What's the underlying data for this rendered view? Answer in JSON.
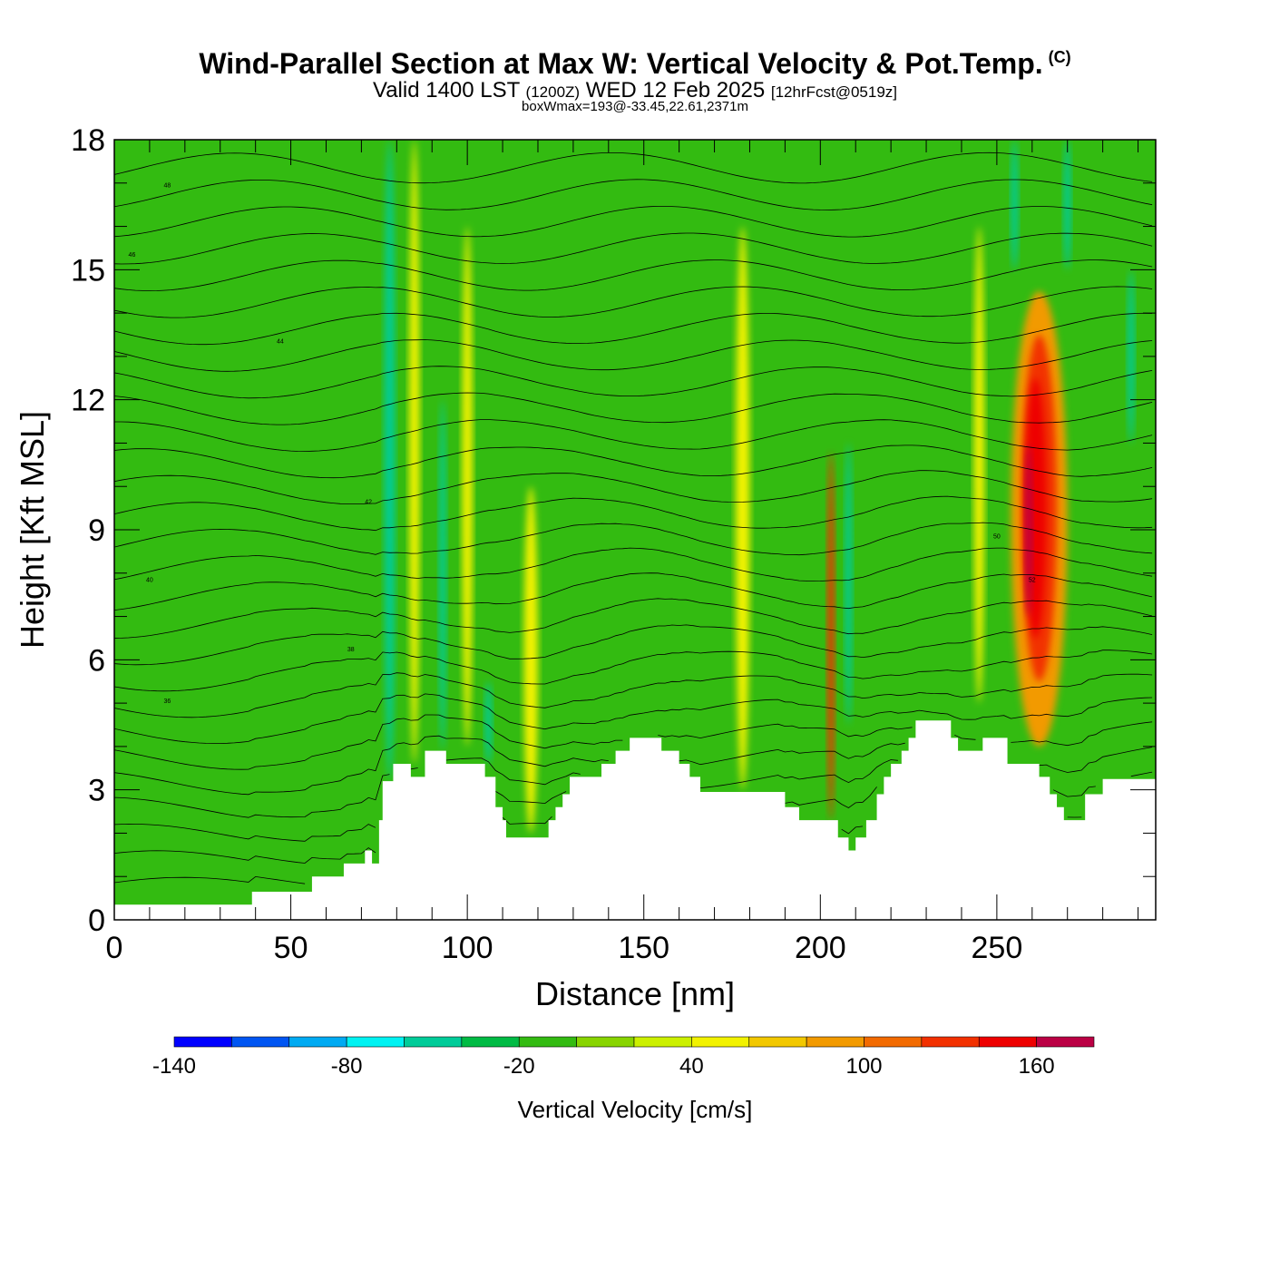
{
  "header": {
    "title": "Wind-Parallel Section at Max W: Vertical Velocity & Pot.Temp.",
    "copyright": "(C)",
    "subtitle_a": "Valid 1400 LST",
    "subtitle_b": "(1200Z)",
    "subtitle_c": "WED 12 Feb 2025",
    "subtitle_d": "[12hrFcst@0519z]",
    "boxwmax": "boxWmax=193@-33.45,22.61,2371m"
  },
  "colors": {
    "palette": [
      "#0000ff",
      "#0055f2",
      "#00aaf2",
      "#00f2f2",
      "#00cc99",
      "#00bb44",
      "#33bb11",
      "#88d400",
      "#ccf000",
      "#f2f200",
      "#f2c800",
      "#f29a00",
      "#f26a00",
      "#f23000",
      "#ee0000",
      "#bb0044"
    ],
    "terrain": "#ffffff",
    "contour": "#000000"
  },
  "chart_data": {
    "type": "heatmap",
    "xlabel": "Distance [nm]",
    "ylabel": "Height [Kft MSL]",
    "xlim": [
      0,
      295
    ],
    "ylim": [
      0,
      18
    ],
    "xticks": [
      "0",
      "50",
      "100",
      "150",
      "200",
      "250"
    ],
    "yticks": [
      "0",
      "3",
      "6",
      "9",
      "12",
      "15",
      "18"
    ],
    "colorbar": {
      "title": "Vertical Velocity [cm/s]",
      "min": -140,
      "max": 180,
      "step": 20,
      "labels": [
        "-140",
        "-80",
        "-20",
        "40",
        "100",
        "160"
      ]
    },
    "terrain_profile": [
      [
        0,
        0.35
      ],
      [
        39,
        0.35
      ],
      [
        39,
        0.65
      ],
      [
        56,
        0.65
      ],
      [
        56,
        1.0
      ],
      [
        65,
        1.0
      ],
      [
        65,
        1.3
      ],
      [
        71,
        1.3
      ],
      [
        71,
        1.6
      ],
      [
        73,
        1.6
      ],
      [
        73,
        1.3
      ],
      [
        75,
        1.3
      ],
      [
        75,
        2.3
      ],
      [
        76,
        2.3
      ],
      [
        76,
        3.2
      ],
      [
        79,
        3.2
      ],
      [
        79,
        3.6
      ],
      [
        84,
        3.6
      ],
      [
        84,
        3.3
      ],
      [
        88,
        3.3
      ],
      [
        88,
        3.9
      ],
      [
        94,
        3.9
      ],
      [
        94,
        3.6
      ],
      [
        105,
        3.6
      ],
      [
        105,
        3.3
      ],
      [
        108,
        3.3
      ],
      [
        108,
        2.6
      ],
      [
        110,
        2.6
      ],
      [
        110,
        2.3
      ],
      [
        111,
        2.3
      ],
      [
        111,
        1.9
      ],
      [
        123,
        1.9
      ],
      [
        123,
        2.3
      ],
      [
        125,
        2.3
      ],
      [
        125,
        2.6
      ],
      [
        127,
        2.6
      ],
      [
        127,
        2.9
      ],
      [
        129,
        2.9
      ],
      [
        129,
        3.3
      ],
      [
        138,
        3.3
      ],
      [
        138,
        3.6
      ],
      [
        142,
        3.6
      ],
      [
        142,
        3.9
      ],
      [
        146,
        3.9
      ],
      [
        146,
        4.2
      ],
      [
        155,
        4.2
      ],
      [
        155,
        3.9
      ],
      [
        160,
        3.9
      ],
      [
        160,
        3.6
      ],
      [
        163,
        3.6
      ],
      [
        163,
        3.3
      ],
      [
        166,
        3.3
      ],
      [
        166,
        2.95
      ],
      [
        190,
        2.95
      ],
      [
        190,
        2.6
      ],
      [
        194,
        2.6
      ],
      [
        194,
        2.3
      ],
      [
        205,
        2.3
      ],
      [
        205,
        1.9
      ],
      [
        208,
        1.9
      ],
      [
        208,
        1.6
      ],
      [
        210,
        1.6
      ],
      [
        210,
        1.9
      ],
      [
        213,
        1.9
      ],
      [
        213,
        2.3
      ],
      [
        216,
        2.3
      ],
      [
        216,
        2.9
      ],
      [
        218,
        2.9
      ],
      [
        218,
        3.3
      ],
      [
        220,
        3.3
      ],
      [
        220,
        3.6
      ],
      [
        223,
        3.6
      ],
      [
        223,
        3.9
      ],
      [
        225,
        3.9
      ],
      [
        225,
        4.2
      ],
      [
        227,
        4.2
      ],
      [
        227,
        4.6
      ],
      [
        237,
        4.6
      ],
      [
        237,
        4.2
      ],
      [
        239,
        4.2
      ],
      [
        239,
        3.9
      ],
      [
        246,
        3.9
      ],
      [
        246,
        4.2
      ],
      [
        253,
        4.2
      ],
      [
        253,
        3.6
      ],
      [
        262,
        3.6
      ],
      [
        262,
        3.3
      ],
      [
        265,
        3.3
      ],
      [
        265,
        2.9
      ],
      [
        267,
        2.9
      ],
      [
        267,
        2.6
      ],
      [
        269,
        2.6
      ],
      [
        269,
        2.3
      ],
      [
        275,
        2.3
      ],
      [
        275,
        2.9
      ],
      [
        280,
        2.9
      ],
      [
        280,
        3.25
      ],
      [
        295,
        3.25
      ]
    ],
    "vertical_velocity_features": [
      {
        "x": 78,
        "y": [
          3.2,
          18
        ],
        "w": -60,
        "width": 3
      },
      {
        "x": 93,
        "y": [
          3.9,
          12
        ],
        "w": -60,
        "width": 2
      },
      {
        "x": 106,
        "y": [
          3.6,
          5.5
        ],
        "w": -60,
        "width": 2
      },
      {
        "x": 208,
        "y": [
          4.5,
          11
        ],
        "w": -60,
        "width": 2
      },
      {
        "x": 255,
        "y": [
          15,
          18
        ],
        "w": -60,
        "width": 2
      },
      {
        "x": 270,
        "y": [
          15,
          18
        ],
        "w": -60,
        "width": 2
      },
      {
        "x": 288,
        "y": [
          11,
          15
        ],
        "w": -60,
        "width": 2
      },
      {
        "x": 85,
        "y": [
          3.6,
          18
        ],
        "w": 40,
        "width": 3
      },
      {
        "x": 100,
        "y": [
          4,
          16
        ],
        "w": 40,
        "width": 3
      },
      {
        "x": 118,
        "y": [
          2,
          10
        ],
        "w": 40,
        "width": 4
      },
      {
        "x": 178,
        "y": [
          3,
          16
        ],
        "w": 40,
        "width": 4
      },
      {
        "x": 245,
        "y": [
          5,
          16
        ],
        "w": 40,
        "width": 3
      },
      {
        "x": 203,
        "y": [
          2.3,
          10.8
        ],
        "w": 130,
        "width": 2
      },
      {
        "x": 262,
        "y": [
          4,
          14.5
        ],
        "w": 80,
        "width": 16
      },
      {
        "x": 262,
        "y": [
          5.5,
          13.5
        ],
        "w": 120,
        "width": 10
      },
      {
        "x": 261,
        "y": [
          6.5,
          12.5
        ],
        "w": 150,
        "width": 6
      },
      {
        "x": 259,
        "y": [
          7,
          11
        ],
        "w": 180,
        "width": 2
      }
    ],
    "pot_temp_contour_labels": [
      "48",
      "46",
      "44",
      "42",
      "40",
      "38",
      "36",
      "52",
      "50"
    ]
  }
}
